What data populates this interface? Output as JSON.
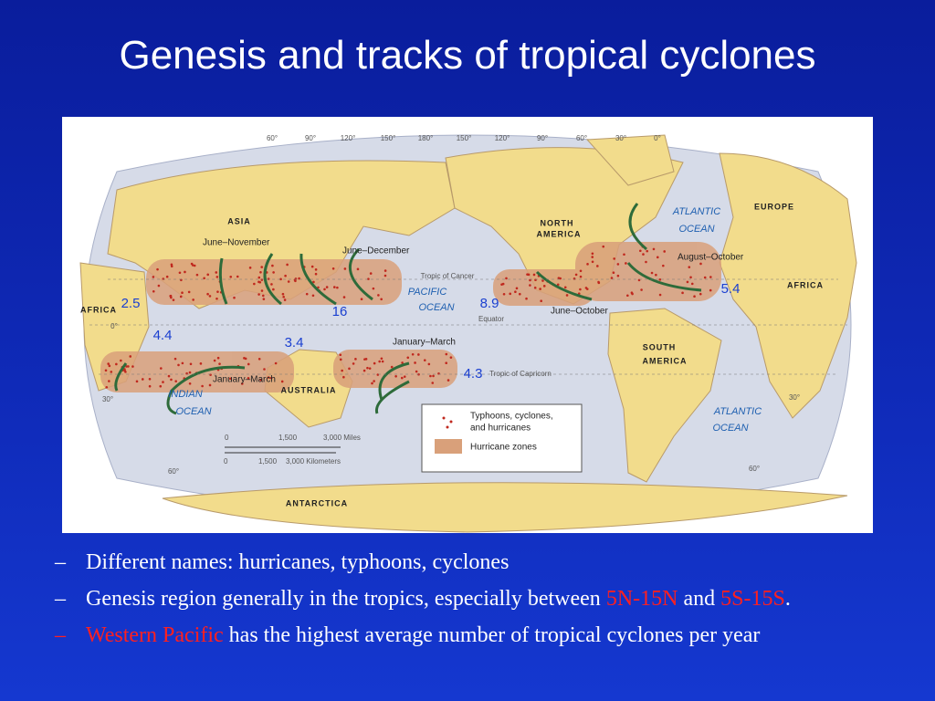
{
  "title": "Genesis and tracks of tropical cyclones",
  "map": {
    "regions": [
      "ASIA",
      "AFRICA",
      "AUSTRALIA",
      "NORTH",
      "AMERICA",
      "SOUTH",
      "AMERICA",
      "EUROPE",
      "AFRICA",
      "ANTARCTICA"
    ],
    "oceans": [
      "INDIAN",
      "OCEAN",
      "PACIFIC",
      "OCEAN",
      "ATLANTIC",
      "OCEAN",
      "ATLANTIC",
      "OCEAN"
    ],
    "seasons": [
      "June–November",
      "June–December",
      "January–March",
      "January–March",
      "June–October",
      "August–October"
    ],
    "annual_counts": [
      2.5,
      16,
      4.4,
      3.4,
      4.3,
      8.9,
      5.4
    ],
    "reference_lines": [
      "Tropic of Cancer",
      "Equator",
      "Tropic of Capricorn"
    ],
    "longitudes": [
      "60°",
      "90°",
      "120°",
      "150°",
      "180°",
      "150°",
      "120°",
      "90°",
      "60°",
      "30°",
      "0°"
    ],
    "latitudes": [
      "0°",
      "30°",
      "60°",
      "30°",
      "60°"
    ],
    "legend": {
      "dots": [
        "Typhoons, cyclones,",
        "and hurricanes"
      ],
      "zones": "Hurricane zones"
    },
    "scale": {
      "miles": [
        "0",
        "1,500",
        "3,000 Miles"
      ],
      "kilometers": [
        "0",
        "1,500",
        "3,000 Kilometers"
      ]
    }
  },
  "bullet_marker": "–",
  "bullets": [
    {
      "marker_color": "#ffffff",
      "segments": [
        {
          "text": "Different names: hurricanes, typhoons, cyclones",
          "color": "#ffffff"
        }
      ]
    },
    {
      "marker_color": "#ffffff",
      "segments": [
        {
          "text": "Genesis region generally in the tropics, especially between ",
          "color": "#ffffff"
        },
        {
          "text": "5N-15N",
          "color": "#ff2020"
        },
        {
          "text": " and ",
          "color": "#ffffff"
        },
        {
          "text": "5S-15S",
          "color": "#ff2020"
        },
        {
          "text": ".",
          "color": "#ffffff"
        }
      ]
    },
    {
      "marker_color": "#ff2020",
      "segments": [
        {
          "text": "Western Pacific",
          "color": "#ff2020"
        },
        {
          "text": " has the highest average number of tropical cyclones per year",
          "color": "#ffffff"
        }
      ]
    }
  ]
}
